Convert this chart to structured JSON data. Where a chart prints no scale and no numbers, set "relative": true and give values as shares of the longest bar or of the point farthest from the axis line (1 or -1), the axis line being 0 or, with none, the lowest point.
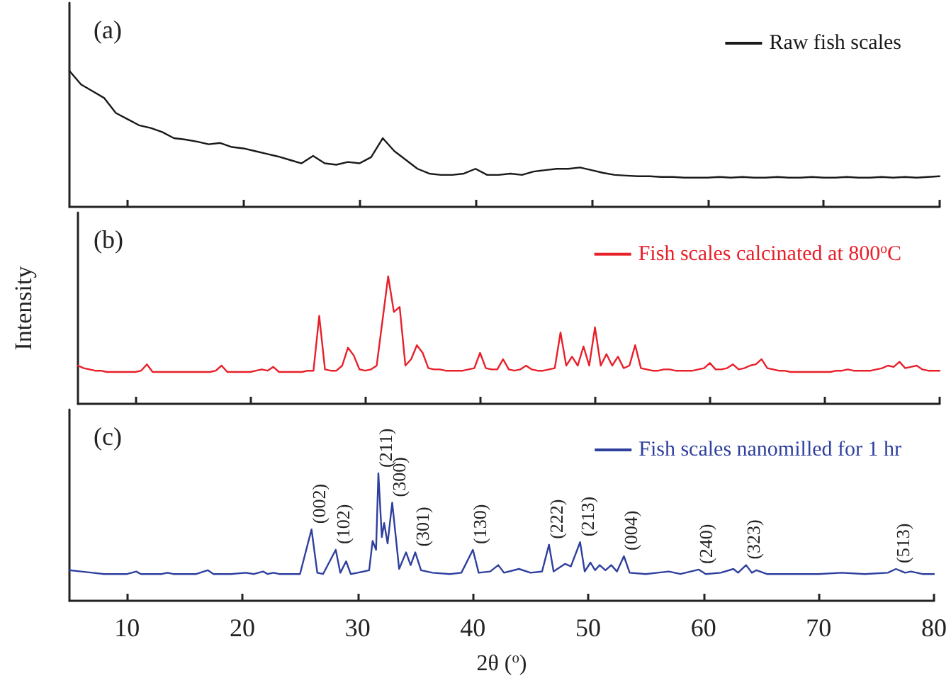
{
  "chart_data": [
    {
      "type": "line",
      "title": "(a)",
      "relative": true,
      "legend": "top right",
      "tick_labels": false,
      "categories": [
        null,
        null,
        null,
        null,
        null,
        null,
        null,
        null,
        null,
        null,
        null,
        null,
        null,
        null,
        null,
        null,
        null,
        null,
        null,
        null,
        null,
        null,
        null,
        null,
        null,
        null,
        null,
        null,
        null,
        null,
        null,
        null,
        null,
        null,
        null,
        null,
        null,
        null,
        null,
        null,
        null,
        null,
        null,
        null,
        null,
        null,
        null,
        null,
        null,
        null,
        null,
        null,
        null,
        null,
        null,
        null,
        null,
        null,
        null,
        null,
        null,
        null,
        null,
        null,
        null,
        null,
        null,
        null,
        null,
        null,
        null,
        null,
        null,
        null,
        null,
        null
      ],
      "series": [
        {
          "name": "Raw fish scales",
          "color": "#1a1a1a",
          "values": [
            1.0,
            0.9,
            0.85,
            0.8,
            0.69,
            0.645,
            0.6,
            0.58,
            0.55,
            0.505,
            0.495,
            0.48,
            0.46,
            0.47,
            0.44,
            0.43,
            0.41,
            0.39,
            0.37,
            0.345,
            0.32,
            0.375,
            0.32,
            0.31,
            0.33,
            0.32,
            0.365,
            0.505,
            0.41,
            0.345,
            0.28,
            0.245,
            0.235,
            0.235,
            0.245,
            0.28,
            0.235,
            0.235,
            0.245,
            0.235,
            0.26,
            0.27,
            0.28,
            0.28,
            0.29,
            0.27,
            0.25,
            0.235,
            0.23,
            0.225,
            0.225,
            0.22,
            0.22,
            0.215,
            0.215,
            0.215,
            0.22,
            0.215,
            0.22,
            0.215,
            0.215,
            0.22,
            0.215,
            0.215,
            0.22,
            0.215,
            0.215,
            0.22,
            0.215,
            0.215,
            0.22,
            0.215,
            0.22,
            0.215,
            0.22,
            0.225
          ]
        }
      ]
    },
    {
      "type": "line",
      "title": "(b)",
      "ylabel": "Intensity",
      "relative": true,
      "legend": "top right",
      "tick_labels": false,
      "categories": [
        null,
        null,
        null,
        null,
        null,
        null,
        null,
        null,
        null,
        null,
        null,
        null,
        null,
        null,
        null,
        null,
        null,
        null,
        null,
        null,
        null,
        null,
        null,
        null,
        null,
        null,
        null,
        null,
        null,
        null,
        null,
        null,
        null,
        null,
        null,
        null,
        null,
        null,
        null,
        null,
        null,
        null,
        null,
        null,
        null,
        null,
        null,
        null,
        null,
        null,
        null,
        null,
        null,
        null,
        null,
        null,
        null,
        null,
        null,
        null,
        null,
        null,
        null,
        null,
        null,
        null,
        null,
        null,
        null,
        null,
        null,
        null,
        null,
        null,
        null,
        null,
        null,
        null,
        null,
        null,
        null,
        null,
        null,
        null,
        null,
        null,
        null,
        null,
        null,
        null,
        null,
        null,
        null,
        null,
        null,
        null,
        null,
        null,
        null,
        null,
        null,
        null,
        null,
        null,
        null,
        null,
        null,
        null,
        null,
        null,
        null,
        null,
        null,
        null,
        null,
        null,
        null,
        null,
        null,
        null,
        null,
        null,
        null,
        null,
        null,
        null,
        null,
        null,
        null,
        null,
        null,
        null,
        null,
        null,
        null,
        null,
        null,
        null,
        null,
        null,
        null,
        null,
        null,
        null,
        null,
        null,
        null,
        null,
        null,
        null,
        null
      ],
      "series": [
        {
          "name": "Fish scales calcinated at 800$^{o}$C",
          "color": "#e8202a",
          "values": [
            0.3,
            0.28,
            0.27,
            0.26,
            0.26,
            0.25,
            0.25,
            0.25,
            0.25,
            0.25,
            0.25,
            0.26,
            0.31,
            0.25,
            0.25,
            0.25,
            0.25,
            0.25,
            0.25,
            0.25,
            0.25,
            0.25,
            0.25,
            0.25,
            0.26,
            0.3,
            0.25,
            0.25,
            0.25,
            0.25,
            0.25,
            0.26,
            0.27,
            0.26,
            0.29,
            0.25,
            0.25,
            0.25,
            0.25,
            0.25,
            0.26,
            0.26,
            0.69,
            0.27,
            0.26,
            0.26,
            0.3,
            0.44,
            0.38,
            0.27,
            0.26,
            0.27,
            0.3,
            0.65,
            1.0,
            0.72,
            0.76,
            0.3,
            0.35,
            0.46,
            0.4,
            0.28,
            0.27,
            0.27,
            0.26,
            0.26,
            0.26,
            0.26,
            0.27,
            0.28,
            0.4,
            0.28,
            0.27,
            0.27,
            0.35,
            0.27,
            0.26,
            0.27,
            0.3,
            0.27,
            0.26,
            0.26,
            0.27,
            0.28,
            0.56,
            0.3,
            0.37,
            0.3,
            0.45,
            0.3,
            0.6,
            0.3,
            0.39,
            0.3,
            0.37,
            0.28,
            0.3,
            0.46,
            0.28,
            0.27,
            0.26,
            0.26,
            0.27,
            0.27,
            0.26,
            0.26,
            0.26,
            0.26,
            0.27,
            0.28,
            0.32,
            0.27,
            0.27,
            0.28,
            0.31,
            0.27,
            0.28,
            0.3,
            0.31,
            0.35,
            0.28,
            0.27,
            0.26,
            0.26,
            0.25,
            0.25,
            0.25,
            0.25,
            0.25,
            0.25,
            0.25,
            0.25,
            0.26,
            0.26,
            0.27,
            0.26,
            0.26,
            0.26,
            0.26,
            0.27,
            0.28,
            0.3,
            0.29,
            0.33,
            0.28,
            0.29,
            0.3,
            0.27,
            0.26,
            0.26,
            0.26
          ]
        }
      ]
    },
    {
      "type": "line",
      "title": "(c)",
      "xlabel": "2θ ($^{o}$)",
      "relative": true,
      "legend": "top right",
      "tick_labels": "x",
      "xlim": [
        5,
        80
      ],
      "xticks": [
        10,
        20,
        30,
        40,
        50,
        60,
        70,
        80
      ],
      "x": [
        5,
        6,
        7,
        8,
        9,
        10,
        10.8,
        11.2,
        13,
        13.5,
        14,
        16,
        17,
        17.5,
        19,
        20.3,
        21,
        21.8,
        22.2,
        22.7,
        23.2,
        25,
        26,
        26.5,
        27,
        28.1,
        28.5,
        29,
        29.4,
        30,
        31,
        31.3,
        31.6,
        31.8,
        32.1,
        32.3,
        32.6,
        33,
        33.6,
        34.2,
        34.6,
        35,
        35.5,
        36.5,
        38,
        39,
        40,
        40.5,
        41.5,
        42.2,
        42.7,
        44,
        45,
        46,
        46.6,
        47,
        48,
        48.5,
        49.3,
        49.7,
        50.2,
        50.6,
        51,
        51.5,
        52,
        52.5,
        53.1,
        53.6,
        55,
        56,
        57,
        58,
        59.6,
        60.2,
        61.5,
        62.6,
        63,
        63.7,
        64.2,
        64.6,
        65.5,
        67,
        70,
        72,
        74,
        76,
        76.7,
        77.5,
        78,
        79,
        80
      ],
      "series": [
        {
          "name": "Fish scales nanomilled for 1 hr",
          "color": "#2e3f9e",
          "values": [
            0.24,
            0.23,
            0.22,
            0.21,
            0.21,
            0.21,
            0.23,
            0.21,
            0.21,
            0.22,
            0.21,
            0.21,
            0.24,
            0.21,
            0.21,
            0.22,
            0.21,
            0.23,
            0.21,
            0.22,
            0.21,
            0.21,
            0.56,
            0.22,
            0.21,
            0.4,
            0.22,
            0.31,
            0.21,
            0.22,
            0.24,
            0.47,
            0.4,
            1.0,
            0.5,
            0.61,
            0.45,
            0.77,
            0.25,
            0.38,
            0.28,
            0.38,
            0.24,
            0.22,
            0.21,
            0.22,
            0.4,
            0.22,
            0.23,
            0.28,
            0.22,
            0.25,
            0.22,
            0.23,
            0.44,
            0.23,
            0.29,
            0.27,
            0.46,
            0.23,
            0.3,
            0.24,
            0.28,
            0.24,
            0.28,
            0.23,
            0.35,
            0.22,
            0.21,
            0.22,
            0.23,
            0.21,
            0.245,
            0.21,
            0.22,
            0.25,
            0.22,
            0.28,
            0.22,
            0.24,
            0.21,
            0.21,
            0.21,
            0.22,
            0.21,
            0.22,
            0.25,
            0.22,
            0.23,
            0.21,
            0.21
          ]
        }
      ],
      "annotations": [
        {
          "text": "(002)",
          "x": 26,
          "y": 0.56
        },
        {
          "text": "(102)",
          "x": 28.1,
          "y": 0.4
        },
        {
          "text": "(211)",
          "x": 31.8,
          "y": 1.0
        },
        {
          "text": "(300)",
          "x": 33,
          "y": 0.77
        },
        {
          "text": "(301)",
          "x": 35,
          "y": 0.38
        },
        {
          "text": "(130)",
          "x": 40,
          "y": 0.4
        },
        {
          "text": "(222)",
          "x": 46.6,
          "y": 0.44
        },
        {
          "text": "(213)",
          "x": 49.3,
          "y": 0.46
        },
        {
          "text": "(004)",
          "x": 53.1,
          "y": 0.35
        },
        {
          "text": "(240)",
          "x": 59.6,
          "y": 0.245
        },
        {
          "text": "(323)",
          "x": 63.7,
          "y": 0.28
        },
        {
          "text": "(513)",
          "x": 76.7,
          "y": 0.25
        }
      ]
    }
  ]
}
